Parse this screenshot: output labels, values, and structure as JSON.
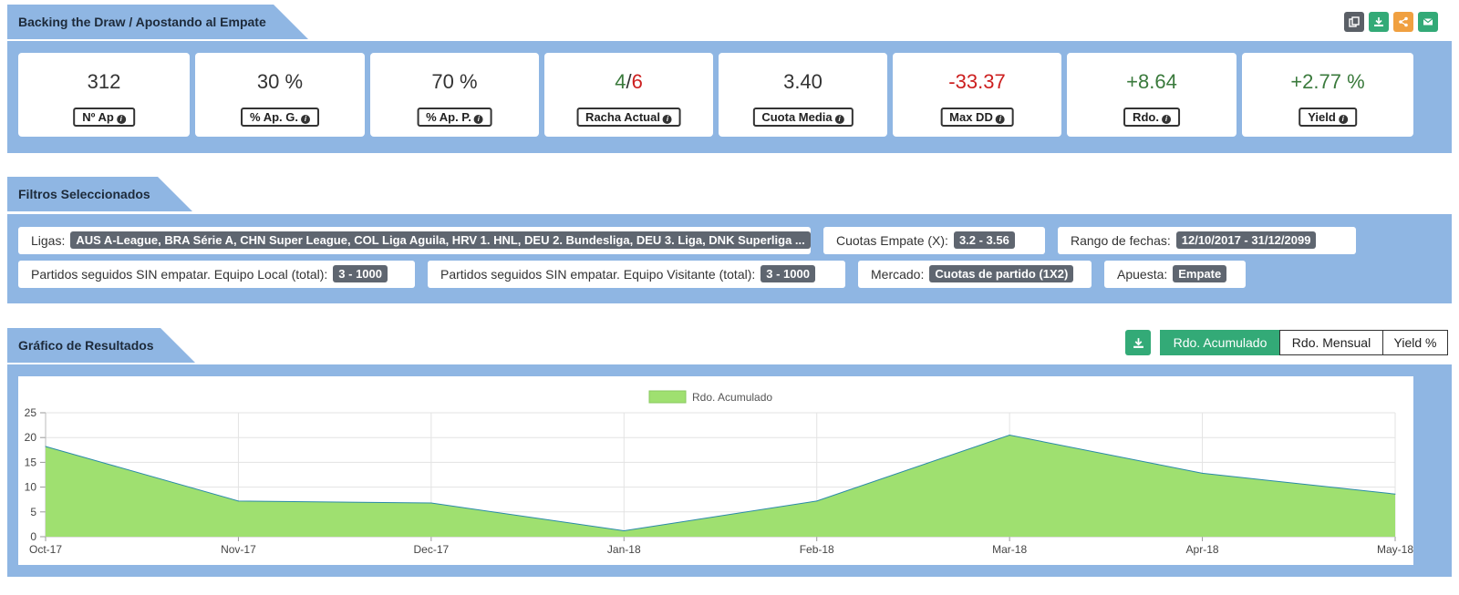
{
  "header": {
    "title": "Backing the Draw / Apostando al Empate",
    "icons": [
      "copy-icon",
      "download-icon",
      "share-icon",
      "email-icon"
    ]
  },
  "stats": [
    {
      "value": "312",
      "label": "Nº Ap"
    },
    {
      "value": "30 %",
      "label": "% Ap. G."
    },
    {
      "value": "70 %",
      "label": "% Ap. P."
    },
    {
      "value_win": "4",
      "value_sep": "/",
      "value_loss": "6",
      "label": "Racha Actual"
    },
    {
      "value": "3.40",
      "label": "Cuota Media"
    },
    {
      "value": "-33.37",
      "label": "Max DD"
    },
    {
      "value": "+8.64",
      "label": "Rdo."
    },
    {
      "value": "+2.77 %",
      "label": "Yield"
    }
  ],
  "filters": {
    "title": "Filtros Seleccionados",
    "items": [
      {
        "label": "Ligas:",
        "value": "AUS A-League, BRA Série A, CHN Super League, COL Liga Aguila, HRV 1. HNL, DEU 2. Bundesliga, DEU 3. Liga, DNK Superliga ..."
      },
      {
        "label": "Cuotas Empate (X):",
        "value": "3.2 - 3.56"
      },
      {
        "label": "Rango de fechas:",
        "value": "12/10/2017 - 31/12/2099"
      },
      {
        "label": "Partidos seguidos SIN empatar. Equipo Local (total):",
        "value": "3 - 1000"
      },
      {
        "label": "Partidos seguidos SIN empatar. Equipo Visitante (total):",
        "value": "3 - 1000"
      },
      {
        "label": "Mercado:",
        "value": "Cuotas de partido (1X2)"
      },
      {
        "label": "Apuesta:",
        "value": "Empate"
      }
    ]
  },
  "results": {
    "title": "Gráfico de Resultados",
    "buttons": [
      "Rdo. Acumulado",
      "Rdo. Mensual",
      "Yield %"
    ],
    "active_button": "Rdo. Acumulado"
  },
  "colors": {
    "panel": "#8fb6e3",
    "green_text": "#3a7a3c",
    "red_text": "#cc1f1f",
    "chart_fill": "#9fe070",
    "chart_line": "#2b8aa8",
    "active_button": "#33aa77"
  },
  "chart_data": {
    "type": "area",
    "x": [
      "Oct-17",
      "Nov-17",
      "Dec-17",
      "Jan-18",
      "Feb-18",
      "Mar-18",
      "Apr-18",
      "May-18"
    ],
    "series": [
      {
        "name": "Rdo. Acumulado",
        "values": [
          18.2,
          7.2,
          6.8,
          1.2,
          7.2,
          20.5,
          12.8,
          8.6
        ]
      }
    ],
    "ylim": [
      0,
      25
    ],
    "yticks": [
      0,
      5,
      10,
      15,
      20,
      25
    ],
    "grid": true,
    "legend": "top-center"
  }
}
